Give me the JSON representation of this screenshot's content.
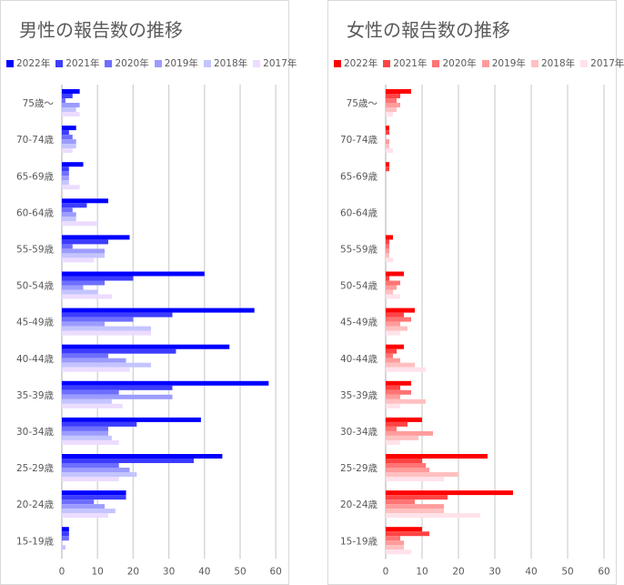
{
  "chart_data": [
    {
      "type": "bar",
      "orientation": "horizontal",
      "title": "男性の報告数の推移",
      "categories": [
        "75歳〜",
        "70-74歳",
        "65-69歳",
        "60-64歳",
        "55-59歳",
        "50-54歳",
        "45-49歳",
        "40-44歳",
        "35-39歳",
        "30-34歳",
        "25-29歳",
        "20-24歳",
        "15-19歳"
      ],
      "xlim": [
        0,
        60
      ],
      "xticks": [
        "0",
        "10",
        "20",
        "30",
        "40",
        "50",
        "60"
      ],
      "grid": true,
      "legend": "top",
      "series": [
        {
          "name": "2022年",
          "color": "#0000ff",
          "values": [
            5,
            4,
            6,
            13,
            19,
            40,
            54,
            47,
            58,
            39,
            45,
            18,
            2
          ]
        },
        {
          "name": "2021年",
          "color": "#3c3cff",
          "values": [
            3,
            2,
            2,
            7,
            13,
            20,
            31,
            32,
            31,
            21,
            37,
            18,
            2
          ]
        },
        {
          "name": "2020年",
          "color": "#6e6eff",
          "values": [
            1,
            3,
            2,
            3,
            3,
            12,
            20,
            13,
            16,
            13,
            16,
            9,
            2
          ]
        },
        {
          "name": "2019年",
          "color": "#9c9cff",
          "values": [
            5,
            4,
            2,
            4,
            12,
            6,
            12,
            18,
            31,
            13,
            19,
            12,
            0
          ]
        },
        {
          "name": "2018年",
          "color": "#c4c4ff",
          "values": [
            4,
            4,
            2,
            4,
            12,
            10,
            25,
            25,
            14,
            14,
            21,
            15,
            1
          ]
        },
        {
          "name": "2017年",
          "color": "#ecdcff",
          "values": [
            5,
            3,
            5,
            10,
            9,
            14,
            25,
            19,
            17,
            16,
            16,
            13,
            0
          ]
        }
      ]
    },
    {
      "type": "bar",
      "orientation": "horizontal",
      "title": "女性の報告数の推移",
      "categories": [
        "75歳〜",
        "70-74歳",
        "65-69歳",
        "60-64歳",
        "55-59歳",
        "50-54歳",
        "45-49歳",
        "40-44歳",
        "35-39歳",
        "30-34歳",
        "25-29歳",
        "20-24歳",
        "15-19歳"
      ],
      "xlim": [
        0,
        60
      ],
      "xticks": [
        "0",
        "10",
        "20",
        "30",
        "40",
        "50",
        "60"
      ],
      "grid": true,
      "legend": "top",
      "series": [
        {
          "name": "2022年",
          "color": "#ff0000",
          "values": [
            7,
            1,
            1,
            0,
            2,
            5,
            8,
            5,
            7,
            10,
            28,
            35,
            10
          ]
        },
        {
          "name": "2021年",
          "color": "#ff4444",
          "values": [
            4,
            1,
            1,
            0,
            1,
            1,
            5,
            3,
            4,
            6,
            10,
            17,
            12
          ]
        },
        {
          "name": "2020年",
          "color": "#ff7474",
          "values": [
            3,
            0,
            0,
            0,
            1,
            4,
            7,
            2,
            7,
            3,
            11,
            8,
            4
          ]
        },
        {
          "name": "2019年",
          "color": "#ff9c9c",
          "values": [
            4,
            1,
            0,
            0,
            1,
            3,
            4,
            4,
            4,
            13,
            12,
            16,
            5
          ]
        },
        {
          "name": "2018年",
          "color": "#ffc0c0",
          "values": [
            3,
            1,
            0,
            0,
            1,
            2,
            6,
            8,
            11,
            9,
            20,
            16,
            5
          ]
        },
        {
          "name": "2017年",
          "color": "#ffe2ea",
          "values": [
            2,
            2,
            0,
            0,
            2,
            4,
            4,
            11,
            4,
            4,
            16,
            26,
            7
          ]
        }
      ]
    }
  ]
}
